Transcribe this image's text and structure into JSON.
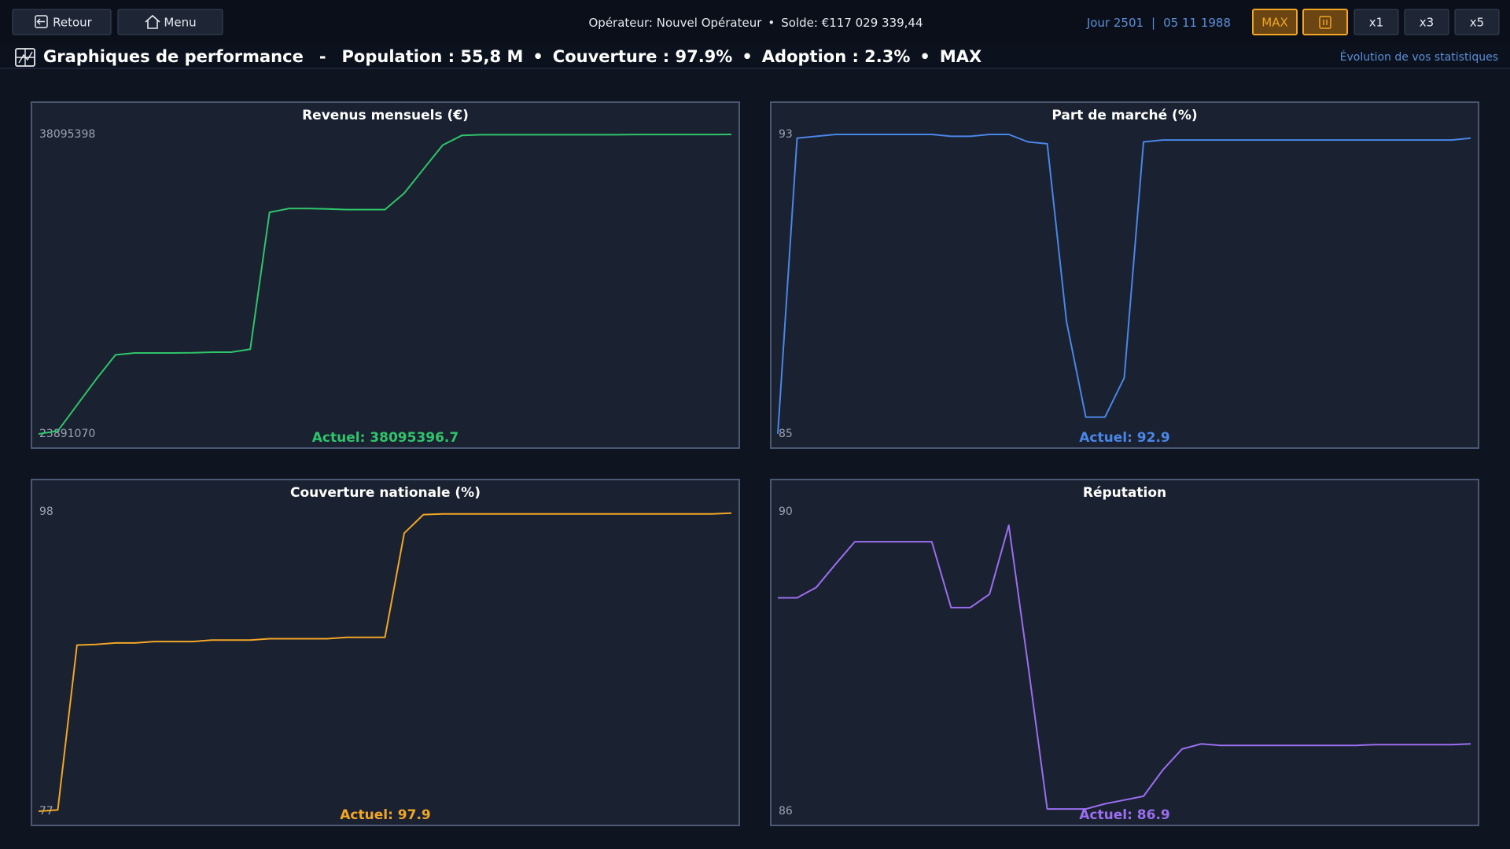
{
  "top_bar": {
    "back_button": "Retour",
    "menu_button": "Menu",
    "operator": "Opérateur: Nouvel Opérateur",
    "separator": "•",
    "balance": "Solde: €117 029 339,44",
    "day": "Jour 2501",
    "date_divider": "|",
    "date": "05 11 1988",
    "speed_buttons": [
      "MAX",
      "x1",
      "x3",
      "x5"
    ]
  },
  "title_bar": {
    "title": "Graphiques de performance",
    "dash": "-",
    "stats": [
      "Population : 55,8 M",
      "Couverture : 97.9%",
      "Adoption : 2.3%",
      "MAX"
    ],
    "subtitle": "Évolution de vos statistiques"
  },
  "chart_data": [
    {
      "type": "line",
      "title": "Revenus mensuels (€)",
      "color": "#2fc46a",
      "ylim": [
        23891070,
        38095398
      ],
      "yticks": [
        23891070,
        38095398
      ],
      "annotation": "Actuel: 38095396.7",
      "values": [
        23891070,
        24030000,
        25260000,
        26490000,
        27640000,
        27730000,
        27730000,
        27730000,
        27740000,
        27770000,
        27770000,
        27910000,
        34400000,
        34580000,
        34580000,
        34560000,
        34530000,
        34530000,
        34530000,
        35310000,
        36450000,
        37590000,
        38050000,
        38080000,
        38080000,
        38080000,
        38080000,
        38080000,
        38080000,
        38080000,
        38080000,
        38090000,
        38090000,
        38090000,
        38090000,
        38090000,
        38095396.7
      ]
    },
    {
      "type": "line",
      "title": "Part de marché (%)",
      "color": "#4a86e8",
      "ylim": [
        85,
        93
      ],
      "yticks": [
        85,
        93
      ],
      "annotation": "Actuel: 92.9",
      "values": [
        85.0,
        92.9,
        92.95,
        93,
        93,
        93,
        93,
        93,
        93,
        92.95,
        92.95,
        93,
        93,
        92.8,
        92.75,
        88,
        85.45,
        85.45,
        86.5,
        92.8,
        92.85,
        92.85,
        92.85,
        92.85,
        92.85,
        92.85,
        92.85,
        92.85,
        92.85,
        92.85,
        92.85,
        92.85,
        92.85,
        92.85,
        92.85,
        92.85,
        92.9
      ]
    },
    {
      "type": "line",
      "title": "Couverture nationale (%)",
      "color": "#f2a626",
      "ylim": [
        77,
        98
      ],
      "yticks": [
        77,
        98
      ],
      "annotation": "Actuel: 97.9",
      "values": [
        77,
        77.1,
        88.65,
        88.7,
        88.8,
        88.8,
        88.9,
        88.9,
        88.9,
        89.0,
        89.0,
        89.0,
        89.1,
        89.1,
        89.1,
        89.1,
        89.2,
        89.2,
        89.2,
        96.5,
        97.8,
        97.85,
        97.85,
        97.85,
        97.85,
        97.85,
        97.85,
        97.85,
        97.85,
        97.85,
        97.85,
        97.85,
        97.85,
        97.85,
        97.85,
        97.85,
        97.9
      ]
    },
    {
      "type": "line",
      "title": "Réputation",
      "color": "#9b6ef0",
      "ylim": [
        86,
        90
      ],
      "yticks": [
        86,
        90
      ],
      "annotation": "Actuel: 86.9",
      "values": [
        88.85,
        88.85,
        88.99,
        89.3,
        89.6,
        89.6,
        89.6,
        89.6,
        89.6,
        88.72,
        88.72,
        88.9,
        89.82,
        87.96,
        86.03,
        86.03,
        86.03,
        86.1,
        86.15,
        86.2,
        86.55,
        86.83,
        86.9,
        86.88,
        86.88,
        86.88,
        86.88,
        86.88,
        86.88,
        86.88,
        86.88,
        86.89,
        86.89,
        86.89,
        86.89,
        86.89,
        86.9
      ]
    }
  ]
}
